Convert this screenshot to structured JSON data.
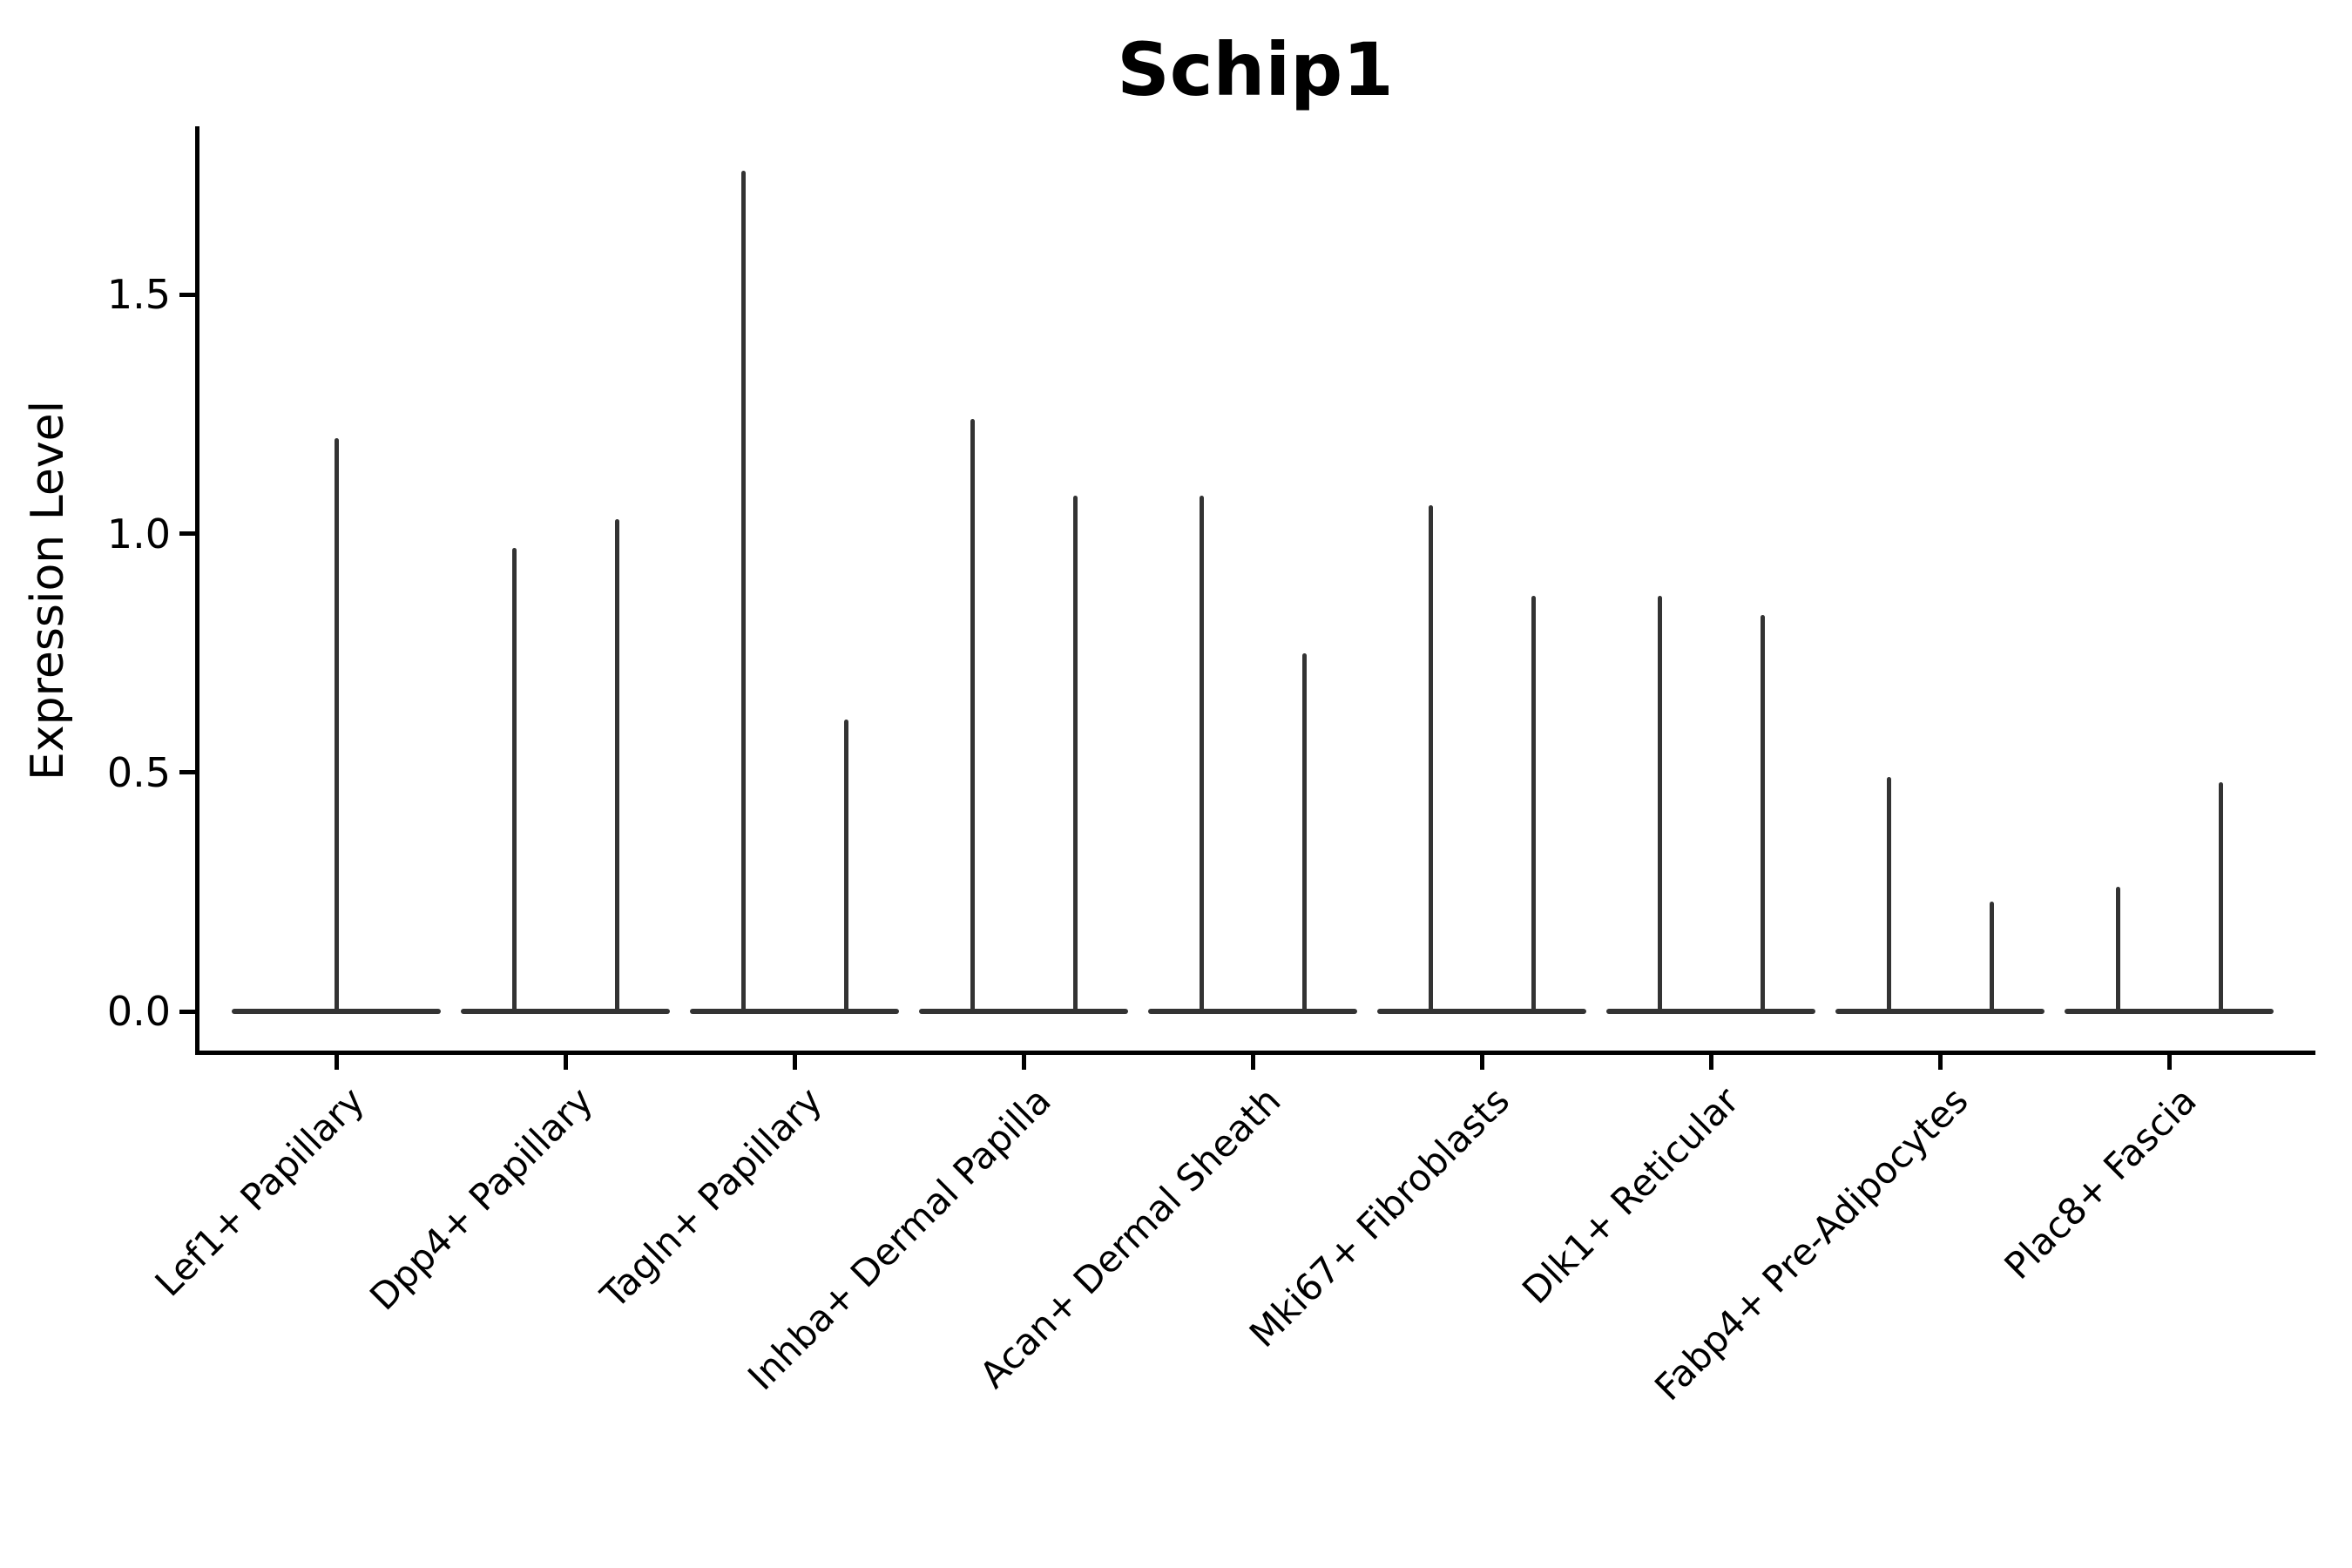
{
  "title": "Schip1",
  "axes": {
    "ylabel": "Expression Level",
    "y_tick_labels": [
      "0.0",
      "0.5",
      "1.0",
      "1.5"
    ],
    "y_tick_values": [
      0.0,
      0.5,
      1.0,
      1.5
    ]
  },
  "colors": {
    "axis": "#000000",
    "violin": "#333333",
    "background": "#ffffff",
    "text": "#000000"
  },
  "chart_data": {
    "type": "violin",
    "title": "Schip1",
    "xlabel": "",
    "ylabel": "Expression Level",
    "ylim": [
      -0.09,
      1.85
    ],
    "yticks": [
      0.0,
      0.5,
      1.0,
      1.5
    ],
    "grid": false,
    "legend": false,
    "categories": [
      "Lef1+ Papillary",
      "Dpp4+ Papillary",
      "Tagln+ Papillary",
      "Inhba+ Dermal Papilla",
      "Acan+ Dermal Sheath",
      "Mki67+ Fibroblasts",
      "Dlk1+ Reticular",
      "Fabp4+ Pre-Adipocytes",
      "Plac8+ Fascia"
    ],
    "violins": [
      {
        "category": "Lef1+ Papillary",
        "layout": "single-full-width",
        "spike_max_values": [
          1.2
        ]
      },
      {
        "category": "Dpp4+ Papillary",
        "layout": "pair",
        "spike_max_values": [
          0.97,
          1.03
        ]
      },
      {
        "category": "Tagln+ Papillary",
        "layout": "pair",
        "spike_max_values": [
          1.76,
          0.61
        ]
      },
      {
        "category": "Inhba+ Dermal Papilla",
        "layout": "pair",
        "spike_max_values": [
          1.24,
          1.08
        ]
      },
      {
        "category": "Acan+ Dermal Sheath",
        "layout": "pair",
        "spike_max_values": [
          1.08,
          0.75
        ]
      },
      {
        "category": "Mki67+ Fibroblasts",
        "layout": "pair",
        "spike_max_values": [
          1.06,
          0.87
        ]
      },
      {
        "category": "Dlk1+ Reticular",
        "layout": "pair",
        "spike_max_values": [
          0.87,
          0.83
        ]
      },
      {
        "category": "Fabp4+ Pre-Adipocytes",
        "layout": "pair",
        "spike_max_values": [
          0.49,
          0.23
        ]
      },
      {
        "category": "Plac8+ Fascia",
        "layout": "pair",
        "spike_max_values": [
          0.26,
          0.48
        ]
      }
    ],
    "shape_note": "Each violin is needle-thin: a wide flat base at expression 0 tapering into a vertical spike reaching the listed max expression value."
  }
}
